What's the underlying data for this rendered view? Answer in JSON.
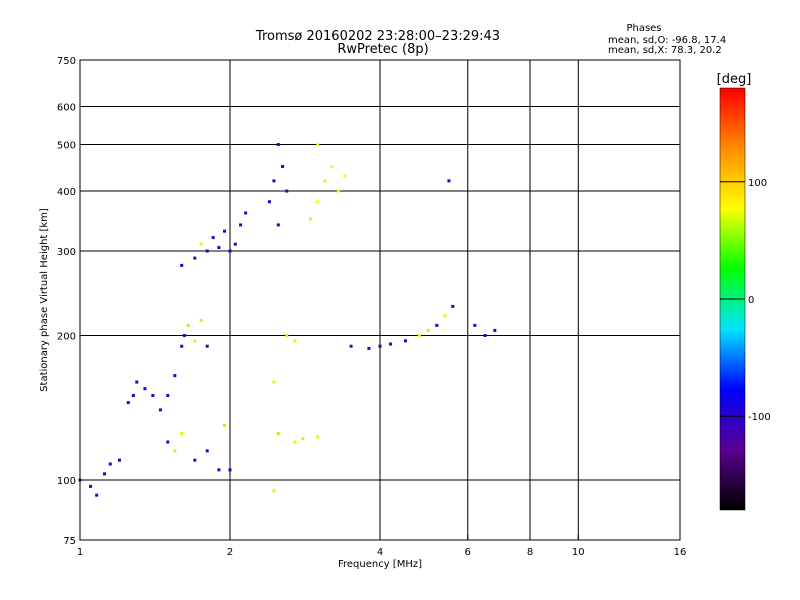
{
  "chart_data": {
    "type": "scatter",
    "title": "Tromsø 20160202 23:28:00–23:29:43",
    "subtitle": "RwPretec (8p)",
    "info_heading": "Phases",
    "info_lines": [
      "mean, sd,O: -96.8, 17.4",
      "mean, sd,X:  78.3, 20.2"
    ],
    "xlabel": "Frequency [MHz]",
    "ylabel": "Stationary phase Virtual Height [km]",
    "x_scale": "log",
    "y_scale": "log",
    "xlim": [
      1,
      16
    ],
    "ylim": [
      75,
      750
    ],
    "x_ticks": [
      {
        "value": 1,
        "label": "1"
      },
      {
        "value": 2,
        "label": "2"
      },
      {
        "value": 4,
        "label": "4"
      },
      {
        "value": 6,
        "label": "6"
      },
      {
        "value": 8,
        "label": "8"
      },
      {
        "value": 10,
        "label": "10"
      },
      {
        "value": 16,
        "label": "16"
      }
    ],
    "x_grid": [
      2,
      4,
      6,
      8,
      10
    ],
    "y_ticks": [
      {
        "value": 75,
        "label": "75"
      },
      {
        "value": 100,
        "label": "100"
      },
      {
        "value": 200,
        "label": "200"
      },
      {
        "value": 300,
        "label": "300"
      },
      {
        "value": 400,
        "label": "400"
      },
      {
        "value": 500,
        "label": "500"
      },
      {
        "value": 600,
        "label": "600"
      },
      {
        "value": 750,
        "label": "750"
      }
    ],
    "y_grid": [
      100,
      200,
      300,
      400,
      500,
      600
    ],
    "grid": true,
    "colorbar": {
      "unit": "[deg]",
      "range": [
        -180,
        180
      ],
      "ticks": [
        {
          "value": 100,
          "label": "100"
        },
        {
          "value": 0,
          "label": "0"
        },
        {
          "value": -100,
          "label": "-100"
        }
      ],
      "colors": [
        "#000000",
        "#5a0090",
        "#0000ff",
        "#00e5ff",
        "#00ff00",
        "#ffff00",
        "#ff8c00",
        "#ff0000"
      ]
    },
    "points": [
      {
        "f": 1.0,
        "h": 100,
        "phase": -100
      },
      {
        "f": 1.05,
        "h": 97,
        "phase": -100
      },
      {
        "f": 1.08,
        "h": 93,
        "phase": -110
      },
      {
        "f": 1.12,
        "h": 103,
        "phase": -100
      },
      {
        "f": 1.15,
        "h": 108,
        "phase": -95
      },
      {
        "f": 1.2,
        "h": 110,
        "phase": -100
      },
      {
        "f": 1.25,
        "h": 145,
        "phase": -105
      },
      {
        "f": 1.28,
        "h": 150,
        "phase": -110
      },
      {
        "f": 1.3,
        "h": 160,
        "phase": -100
      },
      {
        "f": 1.35,
        "h": 155,
        "phase": -95
      },
      {
        "f": 1.4,
        "h": 150,
        "phase": -100
      },
      {
        "f": 1.45,
        "h": 140,
        "phase": -100
      },
      {
        "f": 1.5,
        "h": 150,
        "phase": -110
      },
      {
        "f": 1.55,
        "h": 165,
        "phase": -100
      },
      {
        "f": 1.6,
        "h": 190,
        "phase": -100
      },
      {
        "f": 1.62,
        "h": 200,
        "phase": -95
      },
      {
        "f": 1.65,
        "h": 210,
        "phase": 60
      },
      {
        "f": 1.7,
        "h": 195,
        "phase": 70
      },
      {
        "f": 1.75,
        "h": 215,
        "phase": 65
      },
      {
        "f": 1.8,
        "h": 190,
        "phase": -100
      },
      {
        "f": 1.5,
        "h": 120,
        "phase": -100
      },
      {
        "f": 1.55,
        "h": 115,
        "phase": 65
      },
      {
        "f": 1.6,
        "h": 125,
        "phase": 70
      },
      {
        "f": 1.7,
        "h": 110,
        "phase": -105
      },
      {
        "f": 1.8,
        "h": 115,
        "phase": -100
      },
      {
        "f": 1.9,
        "h": 105,
        "phase": -100
      },
      {
        "f": 1.95,
        "h": 130,
        "phase": 60
      },
      {
        "f": 2.0,
        "h": 105,
        "phase": -100
      },
      {
        "f": 1.6,
        "h": 280,
        "phase": -100
      },
      {
        "f": 1.7,
        "h": 290,
        "phase": -100
      },
      {
        "f": 1.75,
        "h": 310,
        "phase": 70
      },
      {
        "f": 1.8,
        "h": 300,
        "phase": -110
      },
      {
        "f": 1.85,
        "h": 320,
        "phase": -100
      },
      {
        "f": 1.9,
        "h": 305,
        "phase": -100
      },
      {
        "f": 1.95,
        "h": 330,
        "phase": -95
      },
      {
        "f": 2.0,
        "h": 300,
        "phase": -100
      },
      {
        "f": 2.05,
        "h": 310,
        "phase": -100
      },
      {
        "f": 2.1,
        "h": 340,
        "phase": -105
      },
      {
        "f": 2.15,
        "h": 360,
        "phase": -100
      },
      {
        "f": 2.4,
        "h": 380,
        "phase": -100
      },
      {
        "f": 2.45,
        "h": 420,
        "phase": -100
      },
      {
        "f": 2.5,
        "h": 500,
        "phase": -95
      },
      {
        "f": 2.55,
        "h": 450,
        "phase": -100
      },
      {
        "f": 2.6,
        "h": 400,
        "phase": -110
      },
      {
        "f": 2.5,
        "h": 340,
        "phase": -100
      },
      {
        "f": 2.45,
        "h": 160,
        "phase": 70
      },
      {
        "f": 2.6,
        "h": 200,
        "phase": 65
      },
      {
        "f": 2.7,
        "h": 195,
        "phase": 70
      },
      {
        "f": 2.5,
        "h": 125,
        "phase": 60
      },
      {
        "f": 2.7,
        "h": 120,
        "phase": 70
      },
      {
        "f": 2.8,
        "h": 122,
        "phase": 65
      },
      {
        "f": 3.0,
        "h": 123,
        "phase": 70
      },
      {
        "f": 2.45,
        "h": 95,
        "phase": 65
      },
      {
        "f": 2.9,
        "h": 350,
        "phase": 70
      },
      {
        "f": 3.0,
        "h": 380,
        "phase": 75
      },
      {
        "f": 3.1,
        "h": 420,
        "phase": 70
      },
      {
        "f": 3.2,
        "h": 450,
        "phase": 80
      },
      {
        "f": 3.3,
        "h": 400,
        "phase": 70
      },
      {
        "f": 3.4,
        "h": 430,
        "phase": 75
      },
      {
        "f": 3.0,
        "h": 500,
        "phase": 70
      },
      {
        "f": 3.5,
        "h": 190,
        "phase": -100
      },
      {
        "f": 3.8,
        "h": 188,
        "phase": -100
      },
      {
        "f": 4.0,
        "h": 190,
        "phase": -105
      },
      {
        "f": 4.2,
        "h": 192,
        "phase": -100
      },
      {
        "f": 4.5,
        "h": 195,
        "phase": -100
      },
      {
        "f": 4.8,
        "h": 200,
        "phase": 70
      },
      {
        "f": 5.0,
        "h": 205,
        "phase": 65
      },
      {
        "f": 5.2,
        "h": 210,
        "phase": -100
      },
      {
        "f": 5.4,
        "h": 220,
        "phase": 70
      },
      {
        "f": 5.6,
        "h": 230,
        "phase": -100
      },
      {
        "f": 5.5,
        "h": 420,
        "phase": -100
      },
      {
        "f": 6.2,
        "h": 210,
        "phase": -100
      },
      {
        "f": 6.5,
        "h": 200,
        "phase": -100
      },
      {
        "f": 6.8,
        "h": 205,
        "phase": -100
      }
    ]
  }
}
